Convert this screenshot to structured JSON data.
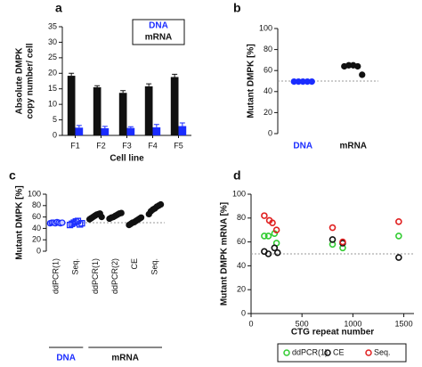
{
  "chart_data": [
    {
      "type": "bar",
      "label": "a",
      "y_label": [
        "Absolute DMPK",
        "copy number/ cell"
      ],
      "x_label": "Cell line",
      "categories": [
        "F1",
        "F2",
        "F3",
        "F4",
        "F5"
      ],
      "series": [
        {
          "name": "DNA",
          "color": "#1a2cff",
          "values": [
            2.5,
            2.3,
            2.4,
            2.6,
            3.0
          ],
          "errors": [
            0.7,
            0.6,
            0.4,
            0.9,
            1.0
          ]
        },
        {
          "name": "mRNA",
          "color": "#111111",
          "values": [
            19.2,
            15.5,
            13.7,
            15.8,
            18.8
          ],
          "errors": [
            0.8,
            0.5,
            0.7,
            0.8,
            0.9
          ]
        }
      ],
      "ylim": [
        0,
        35
      ],
      "yticks": [
        0,
        5,
        10,
        15,
        20,
        25,
        30,
        35
      ],
      "legend": "upper right"
    },
    {
      "type": "strip",
      "label": "b",
      "y_label": "Mutant DMPK [%]",
      "reference_line": 50,
      "groups": [
        {
          "name": "DNA",
          "color": "#1a2cff",
          "marker": "circle",
          "values": [
            49.5,
            49.5,
            49.5,
            49.5,
            49.5
          ]
        },
        {
          "name": "mRNA",
          "color": "#111111",
          "marker": "circle",
          "values": [
            64,
            65,
            65,
            64,
            56
          ]
        }
      ],
      "ylim": [
        0,
        100
      ],
      "yticks": [
        0,
        20,
        40,
        60,
        80,
        100
      ]
    },
    {
      "type": "strip",
      "label": "c",
      "y_label": "Mutant DMPK [%]",
      "reference_line": 50,
      "sections": [
        {
          "name": "DNA",
          "color": "#1a2cff",
          "groups": [
            {
              "name": "ddPCR(1)",
              "color": "#1a2cff",
              "marker": "circle-open",
              "values": [
                49,
                50,
                50,
                49,
                51,
                50,
                49,
                50
              ]
            },
            {
              "name": "Seq.",
              "color": "#1a2cff",
              "marker": "square-open",
              "values": [
                46,
                48,
                50,
                52,
                53,
                47,
                49
              ]
            }
          ]
        },
        {
          "name": "mRNA",
          "color": "#111111",
          "groups": [
            {
              "name": "ddPCR(1)",
              "color": "#111111",
              "marker": "circle",
              "values": [
                56,
                58,
                60,
                62,
                64,
                65,
                66,
                60
              ]
            },
            {
              "name": "ddPCR(2)",
              "color": "#111111",
              "marker": "circle",
              "values": [
                57,
                59,
                60,
                62,
                64,
                66,
                67
              ]
            },
            {
              "name": "CE",
              "color": "#111111",
              "marker": "circle",
              "values": [
                46,
                48,
                50,
                51,
                53,
                55,
                57,
                59
              ]
            },
            {
              "name": "Seq.",
              "color": "#111111",
              "marker": "circle",
              "values": [
                65,
                70,
                73,
                75,
                78,
                80,
                82
              ]
            }
          ]
        }
      ],
      "ylim": [
        0,
        100
      ],
      "yticks": [
        0,
        20,
        40,
        60,
        80,
        100
      ]
    },
    {
      "type": "scatter",
      "label": "d",
      "y_label": "Mutant DMPK mRNA [%]",
      "x_label": "CTG repeat number",
      "reference_line": 50,
      "series": [
        {
          "name": "ddPCR(1)",
          "color": "#33cc33",
          "x": [
            130,
            170,
            230,
            250,
            800,
            900,
            1450
          ],
          "values": [
            65,
            65,
            67,
            59,
            58,
            55,
            65
          ]
        },
        {
          "name": "CE",
          "color": "#111111",
          "x": [
            130,
            170,
            230,
            260,
            800,
            900,
            1450
          ],
          "values": [
            52,
            50,
            55,
            51,
            62,
            59,
            47
          ]
        },
        {
          "name": "Seq.",
          "color": "#e02020",
          "x": [
            130,
            180,
            210,
            250,
            800,
            900,
            1450
          ],
          "values": [
            82,
            78,
            76,
            70,
            72,
            60,
            77
          ]
        }
      ],
      "xlim": [
        0,
        1600
      ],
      "xticks": [
        0,
        500,
        1000,
        1500
      ],
      "ylim": [
        0,
        100
      ],
      "yticks": [
        0,
        20,
        40,
        60,
        80,
        100
      ],
      "legend": "bottom"
    }
  ]
}
